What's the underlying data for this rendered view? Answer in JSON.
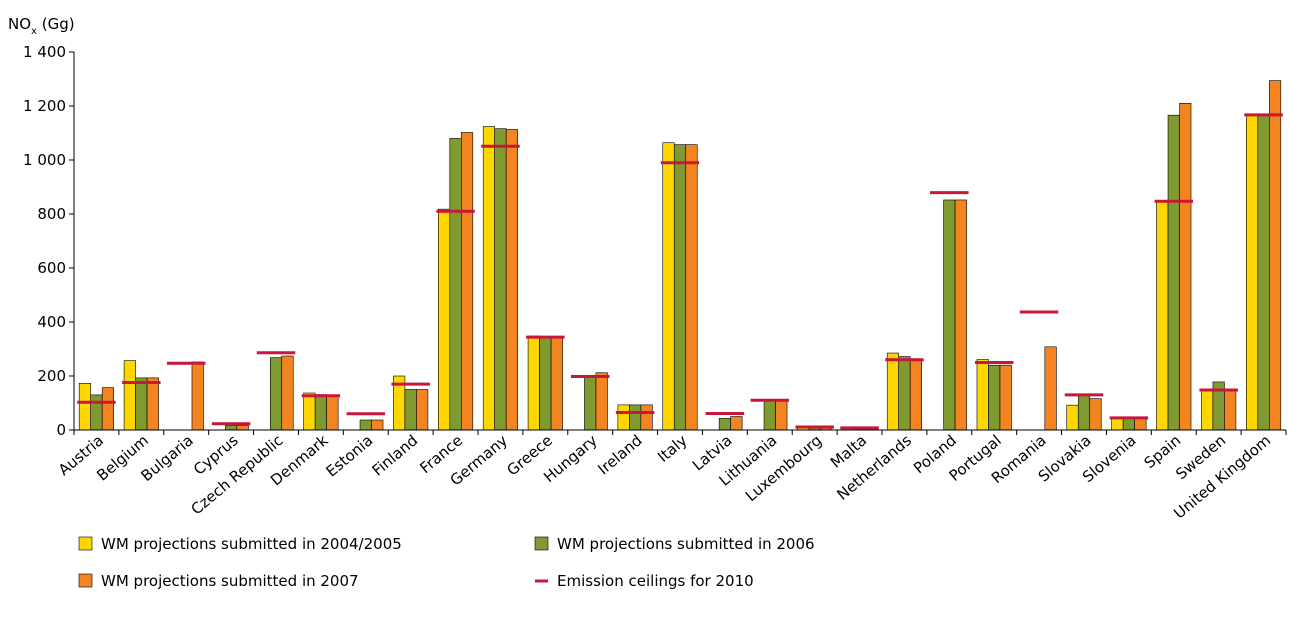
{
  "chart_data": {
    "type": "bar",
    "title": "",
    "ylabel": "NO",
    "ylabel_sub": "x",
    "ylabel_unit": " (Gg)",
    "xlabel": "",
    "ylim": [
      0,
      1400
    ],
    "yticks": [
      0,
      200,
      400,
      600,
      800,
      1000,
      1200,
      1400
    ],
    "ytick_labels": [
      "0",
      "200",
      "400",
      "600",
      "800",
      "1 000",
      "1 200",
      "1 400"
    ],
    "categories": [
      "Austria",
      "Belgium",
      "Bulgaria",
      "Cyprus",
      "Czech Republic",
      "Denmark",
      "Estonia",
      "Finland",
      "France",
      "Germany",
      "Greece",
      "Hungary",
      "Ireland",
      "Italy",
      "Latvia",
      "Lithuania",
      "Luxembourg",
      "Malta",
      "Netherlands",
      "Poland",
      "Portugal",
      "Romania",
      "Slovakia",
      "Slovenia",
      "Spain",
      "Sweden",
      "United Kingdom"
    ],
    "series": [
      {
        "name": "WM projections submitted in 2004/2005",
        "color": "#FFD700",
        "values": [
          173,
          257,
          null,
          null,
          null,
          137,
          null,
          200,
          818,
          1124,
          348,
          null,
          93,
          1064,
          null,
          null,
          12,
          null,
          285,
          null,
          261,
          null,
          92,
          43,
          848,
          148,
          1170
        ]
      },
      {
        "name": "WM projections submitted in 2006",
        "color": "#7F9A31",
        "values": [
          130,
          193,
          null,
          17,
          268,
          131,
          37,
          150,
          1080,
          1116,
          341,
          200,
          93,
          1057,
          43,
          110,
          12,
          7,
          272,
          852,
          240,
          null,
          130,
          45,
          1166,
          178,
          1168
        ]
      },
      {
        "name": "WM projections submitted in 2007",
        "color": "#F28522",
        "values": [
          157,
          193,
          252,
          17,
          274,
          126,
          37,
          150,
          1102,
          1113,
          345,
          212,
          93,
          1057,
          50,
          110,
          12,
          7,
          261,
          852,
          240,
          308,
          116,
          45,
          1210,
          150,
          1294
        ]
      }
    ],
    "ceilings": {
      "name": "Emission ceilings for 2010",
      "color": "#C8173B",
      "values": [
        103,
        176,
        247,
        23,
        286,
        127,
        60,
        170,
        810,
        1051,
        344,
        198,
        65,
        990,
        61,
        110,
        11,
        8,
        260,
        879,
        250,
        437,
        130,
        45,
        847,
        148,
        1167
      ]
    },
    "legend_position": "bottom",
    "grid": false
  }
}
